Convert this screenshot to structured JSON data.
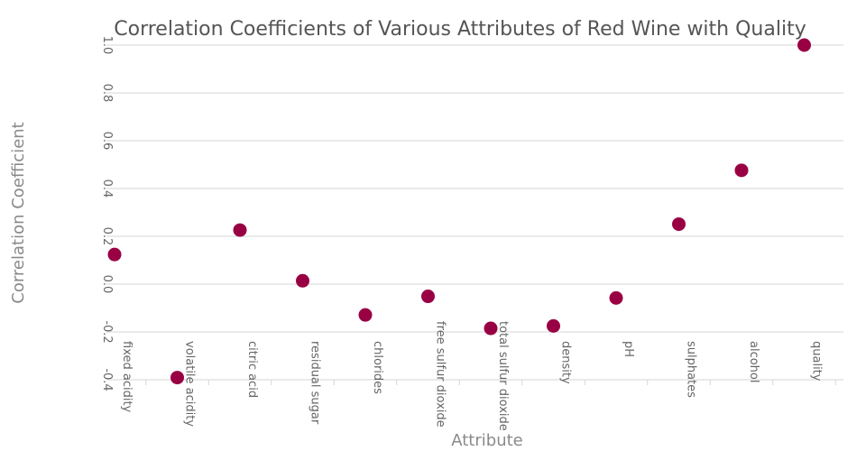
{
  "chart_data": {
    "type": "scatter",
    "title": "Correlation Coefficients of Various Attributes of Red Wine with Quality",
    "xlabel": "Attribute",
    "ylabel": "Correlation Coefficient",
    "categories": [
      "fixed acidity",
      "volatile acidity",
      "citric acid",
      "residual sugar",
      "chlorides",
      "free sulfur dioxide",
      "total sulfur dioxide",
      "density",
      "pH",
      "sulphates",
      "alcohol",
      "quality"
    ],
    "values": [
      0.124,
      -0.391,
      0.226,
      0.014,
      -0.129,
      -0.051,
      -0.185,
      -0.175,
      -0.058,
      0.251,
      0.476,
      1.0
    ],
    "ylim": [
      -0.45,
      1.05
    ],
    "yticks": [
      "-0.4",
      "-0.2",
      "0.0",
      "0.2",
      "0.4",
      "0.6",
      "0.8",
      "1.0"
    ],
    "ytick_values": [
      -0.4,
      -0.2,
      0.0,
      0.2,
      0.4,
      0.6,
      0.8,
      1.0
    ],
    "grid": true,
    "marker_color": "#990044"
  }
}
